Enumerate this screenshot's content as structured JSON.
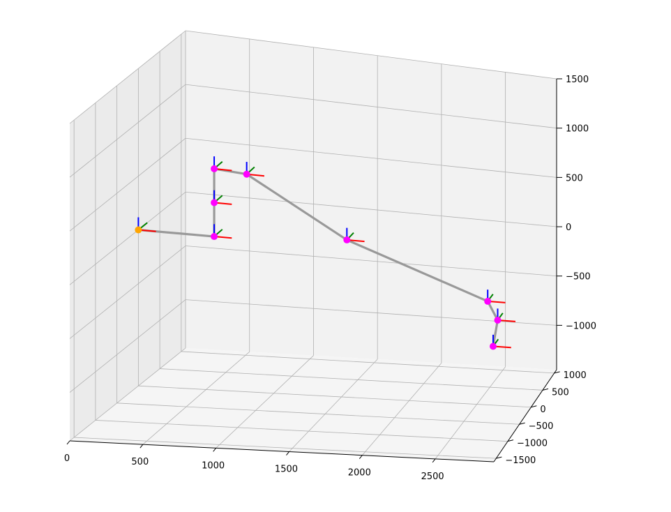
{
  "chart_data": {
    "type": "line",
    "projection": "3d",
    "title": "",
    "xlabel": "",
    "ylabel": "",
    "zlabel": "",
    "grid": true,
    "xlim": [
      0,
      2900
    ],
    "ylim": [
      -1600,
      1100
    ],
    "zlim": [
      -1450,
      1500
    ],
    "x_ticks": [
      "0",
      "500",
      "1000",
      "1500",
      "2000",
      "2500"
    ],
    "y_ticks": [
      "−1500",
      "−1000",
      "−500",
      "0",
      "500",
      "1000"
    ],
    "z_ticks": [
      "−1000",
      "−500",
      "0",
      "500",
      "1000",
      "1500"
    ],
    "chain_color": "#999999",
    "base_color": "#ffa500",
    "joint_color": "#ff00ff",
    "axis_colors": {
      "x": "#ff0000",
      "y": "#008000",
      "z": "#0000ff"
    },
    "points": [
      {
        "label": "base",
        "x": 0,
        "y": 0,
        "z": 0
      },
      {
        "label": "joint",
        "x": 560,
        "y": 0,
        "z": 0
      },
      {
        "label": "joint",
        "x": 560,
        "y": 0,
        "z": 320
      },
      {
        "label": "joint",
        "x": 560,
        "y": 0,
        "z": 640
      },
      {
        "label": "joint",
        "x": 800,
        "y": 0,
        "z": 620
      },
      {
        "label": "joint",
        "x": 1540,
        "y": 0,
        "z": 80
      },
      {
        "label": "joint",
        "x": 2580,
        "y": 0,
        "z": -410
      },
      {
        "label": "joint",
        "x": 2690,
        "y": -200,
        "z": -520
      },
      {
        "label": "joint",
        "x": 2700,
        "y": -440,
        "z": -700
      }
    ]
  }
}
